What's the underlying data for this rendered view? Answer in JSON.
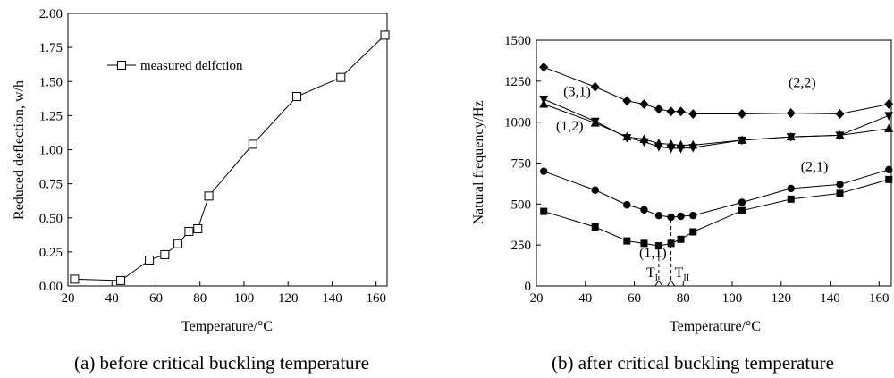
{
  "chart_data": [
    {
      "type": "line",
      "title": "",
      "caption": "(a) before critical buckling temperature",
      "xlabel": "Temperature/°C",
      "ylabel": "Reduced deflection, w/h",
      "xlim": [
        20,
        165
      ],
      "ylim": [
        0,
        2.0
      ],
      "xticks": [
        "20",
        "40",
        "60",
        "80",
        "100",
        "120",
        "140",
        "160"
      ],
      "yticks": [
        "0.00",
        "0.25",
        "0.50",
        "0.75",
        "1.00",
        "1.25",
        "1.50",
        "1.75",
        "2.00"
      ],
      "grid": false,
      "legend": "upper-left",
      "series": [
        {
          "name": "measured delfction",
          "marker": "open-square",
          "x": [
            23,
            44,
            57,
            64,
            70,
            75,
            79,
            84,
            104,
            124,
            144,
            164
          ],
          "y": [
            0.05,
            0.04,
            0.19,
            0.23,
            0.31,
            0.4,
            0.42,
            0.66,
            1.04,
            1.39,
            1.53,
            1.84
          ]
        }
      ]
    },
    {
      "type": "line",
      "title": "",
      "caption": "(b) after critical buckling temperature",
      "xlabel": "Temperature/°C",
      "ylabel": "Natural frequency/Hz",
      "xlim": [
        20,
        165
      ],
      "ylim": [
        0,
        1500
      ],
      "xticks": [
        "20",
        "40",
        "60",
        "80",
        "100",
        "120",
        "140",
        "160"
      ],
      "yticks": [
        "0",
        "250",
        "500",
        "750",
        "1000",
        "1250",
        "1500"
      ],
      "grid": false,
      "legend": "none",
      "series": [
        {
          "name": "(1,1)",
          "marker": "filled-square",
          "x": [
            23,
            44,
            57,
            64,
            70,
            75,
            79,
            84,
            104,
            124,
            144,
            164
          ],
          "y": [
            455,
            360,
            275,
            260,
            245,
            260,
            285,
            330,
            460,
            530,
            565,
            650
          ]
        },
        {
          "name": "(2,1)",
          "marker": "filled-circle",
          "x": [
            23,
            44,
            57,
            64,
            70,
            75,
            79,
            84,
            104,
            124,
            144,
            164
          ],
          "y": [
            700,
            585,
            495,
            465,
            430,
            420,
            425,
            430,
            510,
            595,
            620,
            710
          ]
        },
        {
          "name": "(1,2)",
          "marker": "filled-triangle-up",
          "x": [
            23,
            44,
            57,
            64,
            70,
            75,
            79,
            84,
            104,
            124,
            144,
            164
          ],
          "y": [
            1110,
            995,
            910,
            895,
            870,
            865,
            860,
            860,
            890,
            910,
            920,
            960
          ]
        },
        {
          "name": "(3,1)",
          "marker": "filled-triangle-down",
          "x": [
            23,
            44,
            57,
            64,
            70,
            75,
            79,
            84,
            104,
            124,
            144,
            164
          ],
          "y": [
            1140,
            1005,
            905,
            880,
            850,
            840,
            840,
            845,
            890,
            910,
            920,
            1040
          ]
        },
        {
          "name": "(2,2)",
          "marker": "filled-diamond",
          "x": [
            23,
            44,
            57,
            64,
            70,
            75,
            79,
            84,
            104,
            124,
            144,
            164
          ],
          "y": [
            1335,
            1215,
            1130,
            1110,
            1080,
            1065,
            1065,
            1050,
            1050,
            1055,
            1050,
            1110
          ]
        }
      ],
      "annotations": [
        {
          "text": "(2,2)",
          "x": 123,
          "y": 1215
        },
        {
          "text": "(3,1)",
          "x": 31,
          "y": 1160
        },
        {
          "text": "(1,2)",
          "x": 28,
          "y": 950
        },
        {
          "text": "(2,1)",
          "x": 128,
          "y": 700
        },
        {
          "text": "(1,1)",
          "x": 62,
          "y": 175
        }
      ],
      "markers": [
        {
          "label": "T",
          "sub": "I",
          "x": 70
        },
        {
          "label": "T",
          "sub": "II",
          "x": 75
        }
      ]
    }
  ]
}
